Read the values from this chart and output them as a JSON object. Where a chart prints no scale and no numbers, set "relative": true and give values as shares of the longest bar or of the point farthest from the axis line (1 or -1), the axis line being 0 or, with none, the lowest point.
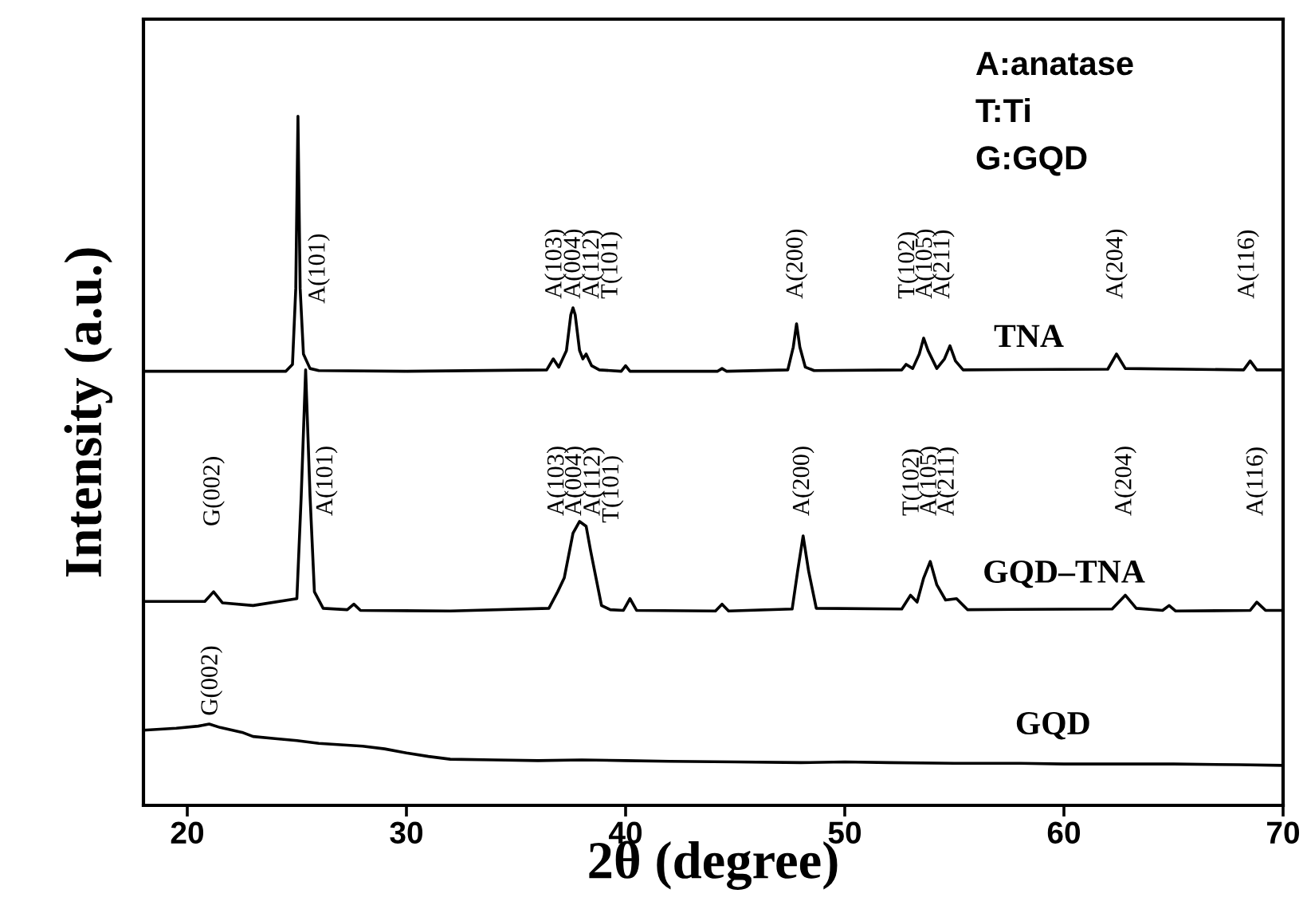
{
  "chart_data": {
    "type": "line",
    "relative": true,
    "xlabel": "2θ (degree)",
    "ylabel": "Intensity (a.u.)",
    "xlim": [
      18,
      70
    ],
    "xticks": [
      20,
      30,
      40,
      50,
      60,
      70
    ],
    "grid": false,
    "legend": false,
    "marker": "none",
    "line_style": "solid",
    "series": [
      {
        "name": "TNA",
        "color": "#000000",
        "x": [
          18,
          24.5,
          24.8,
          24.95,
          25.05,
          25.15,
          25.3,
          25.6,
          26.0,
          30,
          36.4,
          36.7,
          36.95,
          37.3,
          37.5,
          37.6,
          37.7,
          37.9,
          38.05,
          38.2,
          38.45,
          38.8,
          39.8,
          40.0,
          40.2,
          44.2,
          44.4,
          44.6,
          47.4,
          47.65,
          47.8,
          47.95,
          48.2,
          48.6,
          52.6,
          52.8,
          53.1,
          53.4,
          53.6,
          53.8,
          54.2,
          54.55,
          54.8,
          55.05,
          55.4,
          62.0,
          62.4,
          62.8,
          68.2,
          68.5,
          68.8,
          70
        ],
        "values": [
          0.63,
          0.63,
          0.64,
          0.75,
          1.0,
          0.75,
          0.655,
          0.634,
          0.631,
          0.63,
          0.632,
          0.648,
          0.636,
          0.66,
          0.712,
          0.722,
          0.712,
          0.66,
          0.648,
          0.655,
          0.638,
          0.632,
          0.63,
          0.638,
          0.63,
          0.63,
          0.634,
          0.63,
          0.632,
          0.665,
          0.699,
          0.665,
          0.636,
          0.631,
          0.632,
          0.64,
          0.634,
          0.655,
          0.678,
          0.66,
          0.634,
          0.648,
          0.667,
          0.645,
          0.632,
          0.633,
          0.655,
          0.634,
          0.632,
          0.645,
          0.632,
          0.632
        ]
      },
      {
        "name": "GQD–TNA",
        "color": "#000000",
        "x": [
          18,
          20.8,
          21.2,
          21.6,
          23,
          25.0,
          25.2,
          25.4,
          25.6,
          25.8,
          26.2,
          27.3,
          27.6,
          27.9,
          32,
          36.5,
          36.9,
          37.2,
          37.6,
          37.9,
          38.2,
          38.4,
          38.65,
          38.9,
          39.3,
          39.9,
          40.2,
          40.5,
          44.1,
          44.4,
          44.7,
          47.6,
          47.85,
          48.1,
          48.35,
          48.7,
          52.6,
          53.0,
          53.3,
          53.6,
          53.9,
          54.2,
          54.6,
          55.1,
          55.6,
          62.2,
          62.8,
          63.3,
          64.5,
          64.8,
          65.1,
          68.5,
          68.8,
          69.2,
          70
        ],
        "values": [
          0.296,
          0.296,
          0.31,
          0.294,
          0.29,
          0.3,
          0.45,
          0.632,
          0.45,
          0.31,
          0.286,
          0.284,
          0.292,
          0.283,
          0.282,
          0.286,
          0.31,
          0.33,
          0.395,
          0.412,
          0.405,
          0.37,
          0.33,
          0.29,
          0.284,
          0.283,
          0.3,
          0.283,
          0.282,
          0.292,
          0.282,
          0.285,
          0.34,
          0.391,
          0.34,
          0.286,
          0.285,
          0.305,
          0.295,
          0.33,
          0.354,
          0.32,
          0.298,
          0.3,
          0.284,
          0.285,
          0.305,
          0.286,
          0.283,
          0.29,
          0.282,
          0.283,
          0.295,
          0.283,
          0.283
        ]
      },
      {
        "name": "GQD",
        "color": "#000000",
        "x": [
          18,
          19.5,
          20.5,
          21,
          21.5,
          22.5,
          23,
          24,
          25,
          26,
          27,
          28,
          29,
          30,
          31,
          32,
          34,
          36,
          38,
          40,
          42,
          45,
          48,
          50,
          52,
          55,
          58,
          60,
          62,
          65,
          68,
          70
        ],
        "values": [
          0.109,
          0.112,
          0.115,
          0.118,
          0.113,
          0.106,
          0.1,
          0.097,
          0.094,
          0.09,
          0.088,
          0.086,
          0.082,
          0.076,
          0.071,
          0.067,
          0.066,
          0.065,
          0.066,
          0.065,
          0.064,
          0.063,
          0.062,
          0.063,
          0.062,
          0.061,
          0.061,
          0.06,
          0.06,
          0.06,
          0.059,
          0.058
        ]
      }
    ],
    "annotations": [
      "A:anatase",
      "T:Ti",
      "G:GQD",
      "A(101)",
      "A(103)",
      "A(004)",
      "A(112)",
      "T(101)",
      "A(200)",
      "T(102)",
      "A(105)",
      "A(211)",
      "A(204)",
      "A(116)",
      "G(002)",
      "A(101)",
      "A(103)",
      "A(004)",
      "A(112)",
      "T(101)",
      "A(200)",
      "T(102)",
      "A(105)",
      "A(211)",
      "A(204)",
      "A(116)",
      "G(002)"
    ]
  }
}
